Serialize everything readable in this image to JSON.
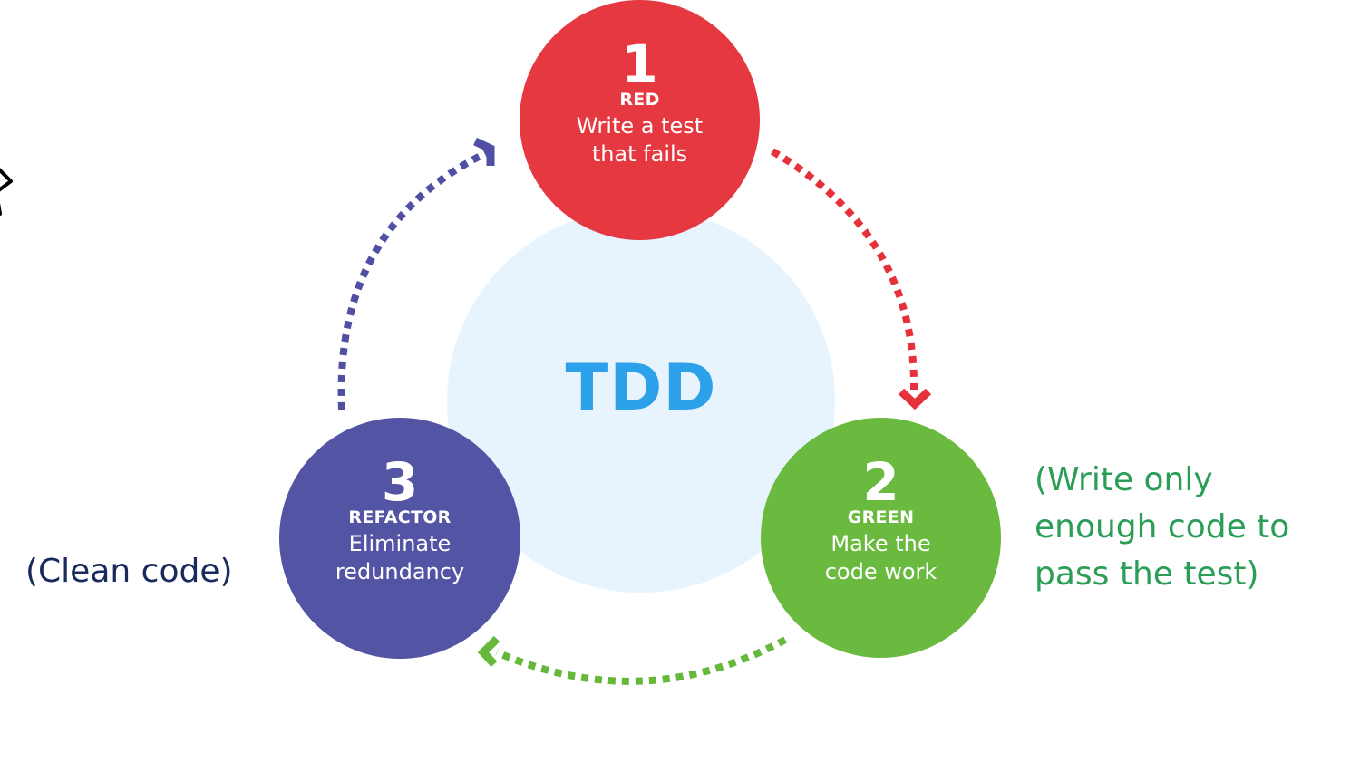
{
  "center": {
    "label": "TDD",
    "color": "#2ca0e8"
  },
  "steps": [
    {
      "number": "1",
      "title": "RED",
      "description_lines": [
        "Write a test",
        "that fails"
      ],
      "color": "#e5323a"
    },
    {
      "number": "2",
      "title": "GREEN",
      "description_lines": [
        "Make the",
        "code work"
      ],
      "color": "#66b83a"
    },
    {
      "number": "3",
      "title": "REFACTOR",
      "description_lines": [
        "Eliminate",
        "redundancy"
      ],
      "color": "#4f4fa3"
    }
  ],
  "arrows": [
    {
      "from": "1",
      "to": "2",
      "style": "dotted",
      "color": "#e5323a"
    },
    {
      "from": "2",
      "to": "3",
      "style": "dotted",
      "color": "#66b83a"
    },
    {
      "from": "3",
      "to": "1",
      "style": "dotted",
      "color": "#4f4fa3"
    }
  ],
  "annotations": {
    "left": "(Clean code)",
    "right_lines": [
      "(Write only",
      "enough code to",
      "pass the test)"
    ]
  }
}
